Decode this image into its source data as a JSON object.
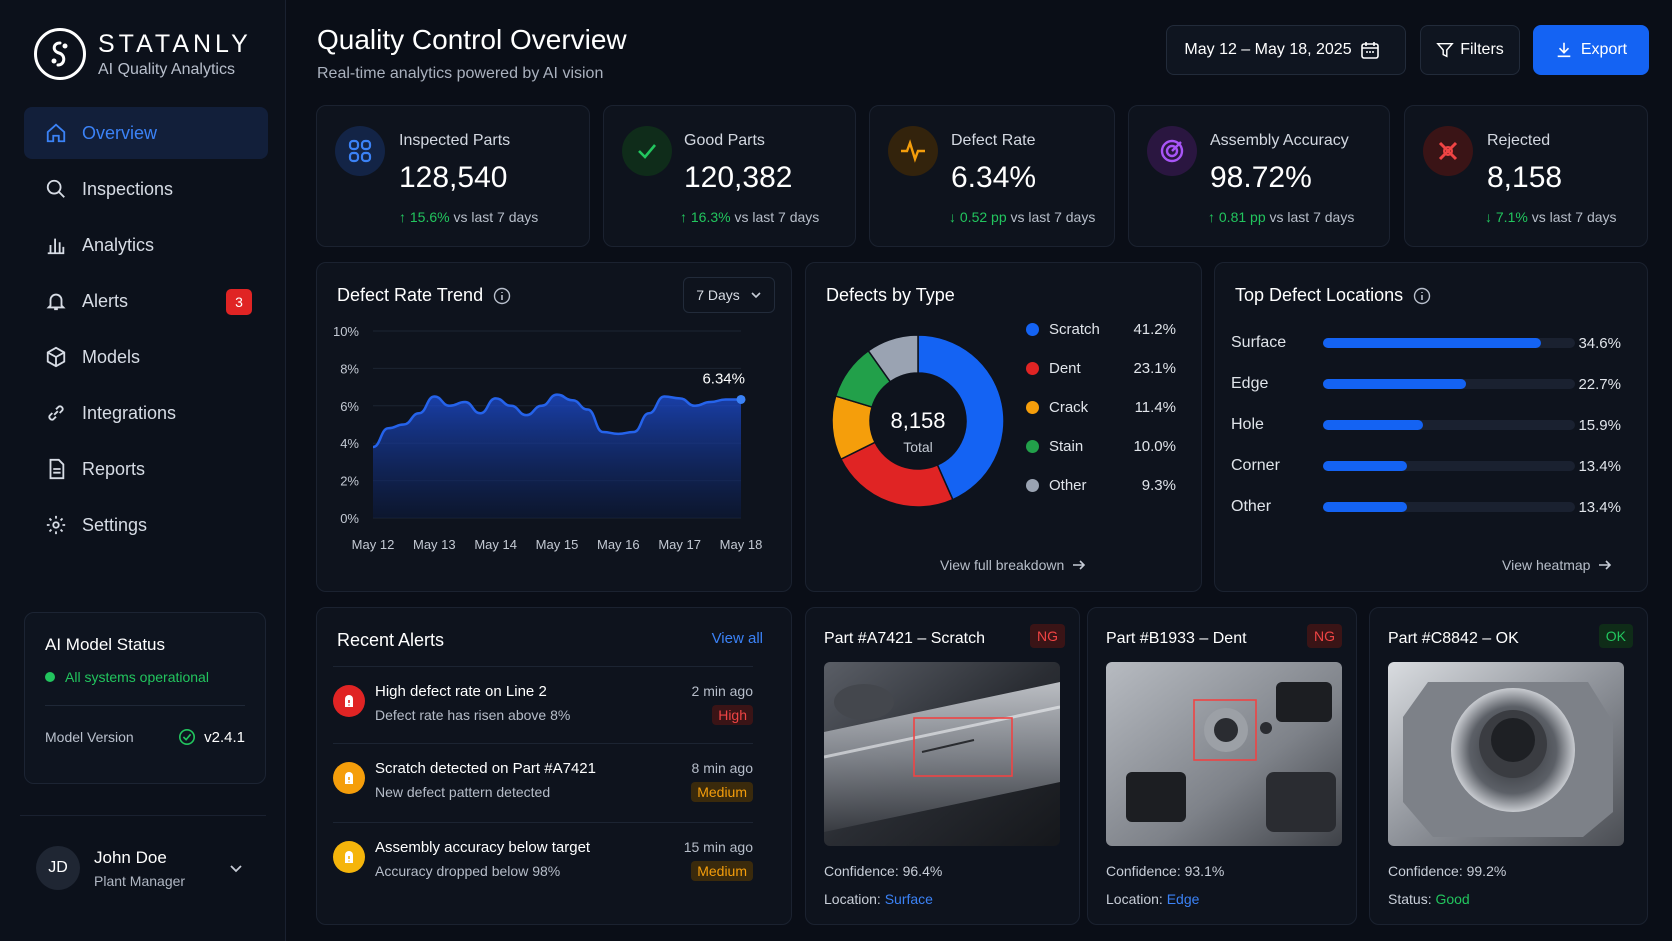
{
  "brand": {
    "name": "STATANLY",
    "subtitle": "AI Quality Analytics"
  },
  "nav": [
    {
      "label": "Overview",
      "icon": "home-icon",
      "active": true
    },
    {
      "label": "Inspections",
      "icon": "search-icon"
    },
    {
      "label": "Analytics",
      "icon": "bar-chart-icon"
    },
    {
      "label": "Alerts",
      "icon": "bell-icon",
      "badge": "3"
    },
    {
      "label": "Models",
      "icon": "cube-icon"
    },
    {
      "label": "Integrations",
      "icon": "link-icon"
    },
    {
      "label": "Reports",
      "icon": "document-icon"
    },
    {
      "label": "Settings",
      "icon": "gear-icon"
    }
  ],
  "ai_status": {
    "title": "AI Model Status",
    "status": "All systems operational",
    "version_label": "Model Version",
    "version": "v2.4.1"
  },
  "user": {
    "initials": "JD",
    "name": "John Doe",
    "role": "Plant Manager"
  },
  "header": {
    "title": "Quality Control Overview",
    "subtitle": "Real-time analytics powered by AI vision",
    "date_range": "May 12 – May 18, 2025",
    "filters_label": "Filters",
    "export_label": "Export"
  },
  "kpis": [
    {
      "label": "Inspected Parts",
      "value": "128,540",
      "change": "15.6%",
      "change_suffix": "vs last 7 days",
      "direction": "up",
      "icon": "grid-icon",
      "color": "#3b82f6"
    },
    {
      "label": "Good Parts",
      "value": "120,382",
      "change": "16.3%",
      "change_suffix": "vs last 7 days",
      "direction": "up",
      "icon": "check-icon",
      "color": "#22c55e"
    },
    {
      "label": "Defect Rate",
      "value": "6.34%",
      "change": "0.52 pp",
      "change_suffix": "vs last 7 days",
      "direction": "down",
      "icon": "pulse-icon",
      "color": "#f59e0b"
    },
    {
      "label": "Assembly Accuracy",
      "value": "98.72%",
      "change": "0.81 pp",
      "change_suffix": "vs last 7 days",
      "direction": "up",
      "icon": "target-icon",
      "color": "#a855f7"
    },
    {
      "label": "Rejected",
      "value": "8,158",
      "change": "7.1%",
      "change_suffix": "vs last 7 days",
      "direction": "down",
      "icon": "x-icon",
      "color": "#ef4444"
    }
  ],
  "trend": {
    "title": "Defect Rate Trend",
    "range": "7 Days",
    "last_label": "6.34%"
  },
  "chart_data": [
    {
      "type": "area",
      "title": "Defect Rate Trend",
      "x": [
        "May 12",
        "May 13",
        "May 14",
        "May 15",
        "May 16",
        "May 17",
        "May 18"
      ],
      "y_ticks": [
        "10%",
        "8%",
        "6%",
        "4%",
        "2%",
        "0%"
      ],
      "ylim": [
        0,
        10
      ],
      "points": [
        [
          0,
          3.8
        ],
        [
          0.25,
          4.8
        ],
        [
          0.5,
          5.0
        ],
        [
          0.75,
          5.6
        ],
        [
          1,
          6.5
        ],
        [
          1.25,
          6.0
        ],
        [
          1.5,
          6.2
        ],
        [
          1.75,
          5.6
        ],
        [
          2,
          6.4
        ],
        [
          2.25,
          6.0
        ],
        [
          2.5,
          5.5
        ],
        [
          2.75,
          6.0
        ],
        [
          3,
          6.6
        ],
        [
          3.25,
          6.3
        ],
        [
          3.5,
          5.8
        ],
        [
          3.75,
          4.6
        ],
        [
          4,
          4.5
        ],
        [
          4.25,
          4.6
        ],
        [
          4.5,
          5.6
        ],
        [
          4.75,
          6.5
        ],
        [
          5,
          6.4
        ],
        [
          5.25,
          6.0
        ],
        [
          5.5,
          6.2
        ],
        [
          5.75,
          6.34
        ],
        [
          6,
          6.34
        ]
      ],
      "color": "#1d5bf0"
    },
    {
      "type": "pie",
      "title": "Defects by Type",
      "center_value": "8,158",
      "center_label": "Total",
      "slices": [
        {
          "name": "Scratch",
          "value": 41.2,
          "label": "41.2%",
          "color": "#1463f3"
        },
        {
          "name": "Dent",
          "value": 23.1,
          "label": "23.1%",
          "color": "#e02424"
        },
        {
          "name": "Crack",
          "value": 11.4,
          "label": "11.4%",
          "color": "#f59e0b"
        },
        {
          "name": "Stain",
          "value": 10.0,
          "label": "10.0%",
          "color": "#22a04a"
        },
        {
          "name": "Other",
          "value": 9.3,
          "label": "9.3%",
          "color": "#9aa3b2"
        }
      ]
    },
    {
      "type": "bar",
      "title": "Top Defect Locations",
      "categories": [
        "Surface",
        "Edge",
        "Hole",
        "Corner",
        "Other"
      ],
      "values": [
        34.6,
        22.7,
        15.9,
        13.4,
        13.4
      ],
      "labels": [
        "34.6%",
        "22.7%",
        "15.9%",
        "13.4%",
        "13.4%"
      ]
    }
  ],
  "defects": {
    "title": "Defects by Type",
    "link": "View full breakdown"
  },
  "locations": {
    "title": "Top Defect Locations",
    "link": "View heatmap"
  },
  "alerts": {
    "title": "Recent Alerts",
    "view_all": "View all",
    "items": [
      {
        "title": "High defect rate on Line 2",
        "desc": "Defect rate has risen above 8%",
        "time": "2 min ago",
        "severity": "High",
        "color": "#e02424"
      },
      {
        "title": "Scratch detected on Part #A7421",
        "desc": "New defect pattern detected",
        "time": "8 min ago",
        "severity": "Medium",
        "color": "#f59e0b"
      },
      {
        "title": "Assembly accuracy below target",
        "desc": "Accuracy dropped below 98%",
        "time": "15 min ago",
        "severity": "Medium",
        "color": "#f5b50b"
      }
    ]
  },
  "parts": [
    {
      "title": "Part #A7421 – Scratch",
      "tag": "NG",
      "confidence": "Confidence: 96.4%",
      "meta_label": "Location: ",
      "meta_value": "Surface"
    },
    {
      "title": "Part #B1933 – Dent",
      "tag": "NG",
      "confidence": "Confidence: 93.1%",
      "meta_label": "Location: ",
      "meta_value": "Edge"
    },
    {
      "title": "Part #C8842 – OK",
      "tag": "OK",
      "confidence": "Confidence: 99.2%",
      "meta_label": "Status: ",
      "meta_value": "Good"
    }
  ]
}
